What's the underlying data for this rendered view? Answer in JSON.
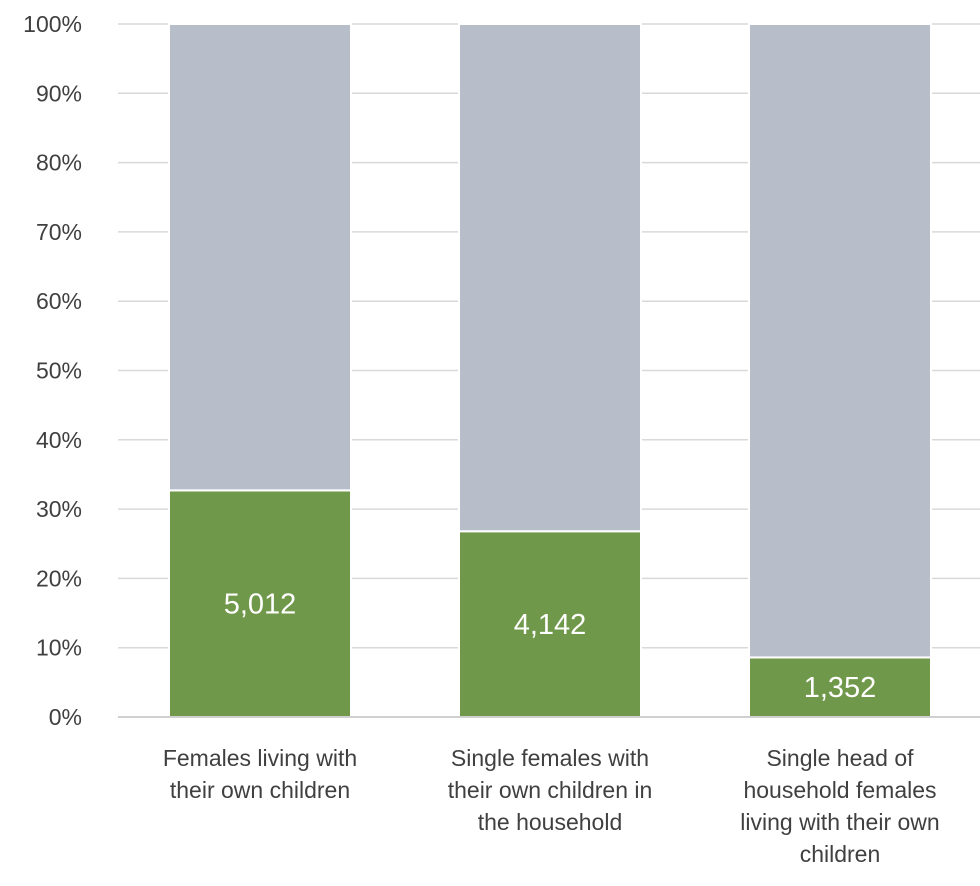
{
  "chart_data": {
    "type": "bar",
    "stacked": true,
    "percent_stacked": true,
    "categories": [
      [
        "Females living with",
        "their own children"
      ],
      [
        "Single females with",
        "their own children in",
        "the household"
      ],
      [
        "Single head of",
        "household females",
        "living with their own",
        "children"
      ]
    ],
    "series": [
      {
        "values": [
          32.7,
          26.8,
          8.6
        ],
        "labels": [
          "5,012",
          "4,142",
          "1,352"
        ],
        "color": "#70984a"
      },
      {
        "values": [
          67.3,
          73.2,
          91.4
        ],
        "color": "#b8bec9"
      }
    ],
    "ylim": [
      0,
      100
    ],
    "yticks": [
      "0%",
      "10%",
      "20%",
      "30%",
      "40%",
      "50%",
      "60%",
      "70%",
      "80%",
      "90%",
      "100%"
    ],
    "grid": true,
    "legend": "none"
  }
}
